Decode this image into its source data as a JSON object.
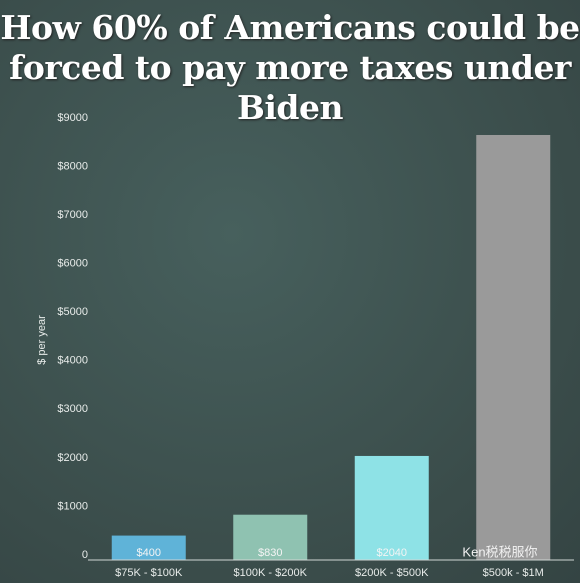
{
  "chart_data": {
    "type": "bar",
    "title": "How 60% of Americans could be forced to pay more taxes under Biden",
    "y_label": "$ per year",
    "categories": [
      "$75K - $100K",
      "$100K - $200K",
      "$200K - $500K",
      "$500k - $1M"
    ],
    "values": [
      400,
      830,
      2040,
      8650
    ],
    "value_labels": [
      "$400",
      "$830",
      "$2040",
      null
    ],
    "colors": [
      "#5fb3d8",
      "#8fc2b1",
      "#8ee2e6",
      "#9a9a9a"
    ],
    "ylim": [
      0,
      9000
    ],
    "yticks": [
      {
        "value": 0,
        "label": "0"
      },
      {
        "value": 1000,
        "label": "$1000"
      },
      {
        "value": 2000,
        "label": "$2000"
      },
      {
        "value": 3000,
        "label": "$3000"
      },
      {
        "value": 4000,
        "label": "$4000"
      },
      {
        "value": 5000,
        "label": "$5000"
      },
      {
        "value": 6000,
        "label": "$6000"
      },
      {
        "value": 7000,
        "label": "$7000"
      },
      {
        "value": 8000,
        "label": "$8000"
      },
      {
        "value": 9000,
        "label": "$9000"
      }
    ],
    "grid": false,
    "watermark": "Ken税税服你"
  }
}
